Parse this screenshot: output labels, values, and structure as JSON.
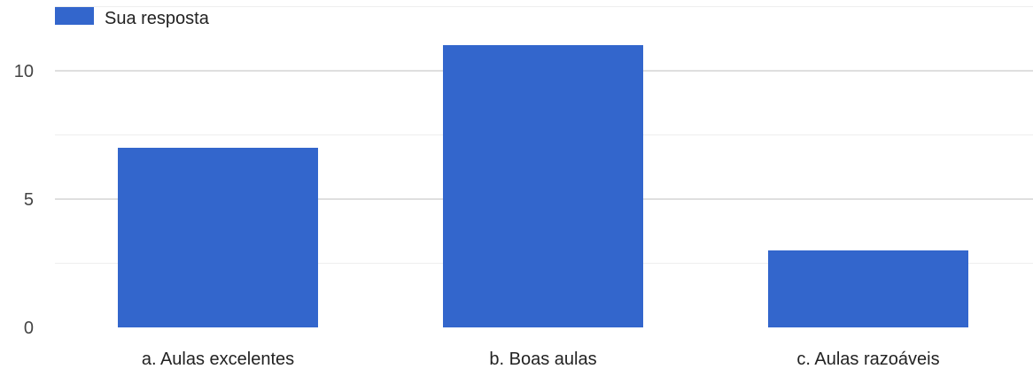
{
  "chart_data": {
    "type": "bar",
    "categories": [
      "a. Aulas excelentes",
      "b. Boas aulas",
      "c. Aulas razoáveis"
    ],
    "series": [
      {
        "name": "Sua resposta",
        "values": [
          7,
          11,
          3
        ]
      }
    ],
    "yticks": [
      "0",
      "5",
      "10"
    ],
    "ylim": [
      0,
      12.5
    ],
    "ytick_values": [
      0,
      5,
      10
    ],
    "grid": true,
    "legend": "top-left",
    "colors": {
      "bar": "#3366cc",
      "grid_major": "#cccccc",
      "grid_minor": "#eeeeee"
    }
  }
}
